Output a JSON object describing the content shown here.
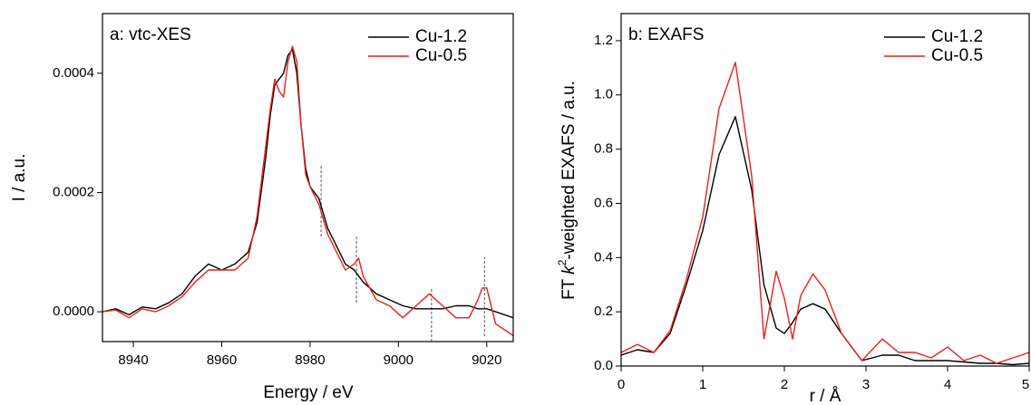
{
  "chart_data": [
    {
      "type": "line",
      "title": "a: vtc-XES",
      "xlabel": "Energy / eV",
      "ylabel": "I / a.u.",
      "x": [
        8933,
        8936,
        8939,
        8942,
        8945,
        8948,
        8951,
        8954,
        8957,
        8960,
        8963,
        8966,
        8968,
        8970,
        8971,
        8972,
        8973,
        8974,
        8975,
        8976,
        8977,
        8978,
        8979,
        8980,
        8982,
        8984,
        8986,
        8988,
        8990,
        8991,
        8992,
        8995,
        8998,
        9001,
        9004,
        9007,
        9010,
        9013,
        9016,
        9018,
        9019,
        9020,
        9022,
        9026
      ],
      "series": [
        {
          "name": "Cu-1.2",
          "color": "#000000",
          "values": [
            0,
            5e-06,
            -5e-06,
            8e-06,
            5e-06,
            1.5e-05,
            3e-05,
            6e-05,
            8e-05,
            7e-05,
            8e-05,
            0.0001,
            0.00015,
            0.00026,
            0.00033,
            0.00038,
            0.00039,
            0.0004,
            0.00043,
            0.00044,
            0.0004,
            0.00031,
            0.00024,
            0.00021,
            0.00019,
            0.00014,
            0.00011,
            8e-05,
            7e-05,
            6e-05,
            5e-05,
            3e-05,
            2e-05,
            1e-05,
            5e-06,
            5e-06,
            5e-06,
            1e-05,
            1e-05,
            5e-06,
            5e-06,
            5e-06,
            0,
            -1e-05
          ]
        },
        {
          "name": "Cu-0.5",
          "color": "#e8211a",
          "values": [
            0,
            3e-06,
            -1e-05,
            5e-06,
            0,
            1e-05,
            2.5e-05,
            5e-05,
            7e-05,
            7e-05,
            7e-05,
            9e-05,
            0.00016,
            0.00028,
            0.00034,
            0.00039,
            0.00037,
            0.00036,
            0.00042,
            0.000445,
            0.00042,
            0.00031,
            0.00023,
            0.00021,
            0.00018,
            0.00013,
            0.0001,
            7e-05,
            8e-05,
            9e-05,
            6e-05,
            2e-05,
            1e-05,
            -1e-05,
            1e-05,
            3e-05,
            1e-05,
            -1e-05,
            -1e-05,
            2e-05,
            4e-05,
            4e-05,
            -2e-05,
            -4e-05
          ]
        }
      ],
      "reference_lines": [
        {
          "x": 8982.5,
          "y": [
            0.000126,
            0.000248
          ]
        },
        {
          "x": 8990.5,
          "y": [
            1.52e-05,
            0.000129
          ]
        },
        {
          "x": 9007.5,
          "y": [
            -5e-05,
            4.1e-05
          ]
        },
        {
          "x": 9019.5,
          "y": [
            -4.1e-05,
            9.13e-05
          ]
        }
      ],
      "xlim": [
        8933,
        9026
      ],
      "xticks": [
        8940,
        8960,
        8980,
        9000,
        9020
      ],
      "ylim": [
        -5e-05,
        0.0005
      ],
      "yticks": [
        {
          "value": 0,
          "label": "0.0000"
        },
        0.0002,
        0.0004
      ],
      "legend": "upper right"
    },
    {
      "type": "line",
      "title": "b: EXAFS",
      "xlabel": "r / Å",
      "ylabel": {
        "prefix": "FT ",
        "variable": "k",
        "exponent": "2",
        "suffix": "-weighted EXAFS / a.u."
      },
      "x": [
        0,
        0.2,
        0.4,
        0.6,
        0.8,
        1.0,
        1.2,
        1.4,
        1.6,
        1.75,
        1.9,
        2.0,
        2.1,
        2.2,
        2.35,
        2.5,
        2.7,
        2.95,
        3.2,
        3.4,
        3.6,
        3.8,
        4.0,
        4.2,
        4.4,
        4.6,
        4.8,
        5.0
      ],
      "series": [
        {
          "name": "Cu-1.2",
          "color": "#000000",
          "values": [
            0.04,
            0.06,
            0.05,
            0.12,
            0.3,
            0.5,
            0.78,
            0.92,
            0.65,
            0.3,
            0.14,
            0.12,
            0.16,
            0.21,
            0.23,
            0.21,
            0.12,
            0.02,
            0.04,
            0.04,
            0.02,
            0.02,
            0.02,
            0.015,
            0.01,
            0.01,
            0.005,
            0.01
          ]
        },
        {
          "name": "Cu-0.5",
          "color": "#e8211a",
          "values": [
            0.05,
            0.08,
            0.05,
            0.13,
            0.32,
            0.55,
            0.95,
            1.12,
            0.7,
            0.1,
            0.35,
            0.25,
            0.1,
            0.26,
            0.34,
            0.28,
            0.12,
            0.02,
            0.1,
            0.05,
            0.05,
            0.03,
            0.07,
            0.02,
            0.04,
            0.01,
            0.03,
            0.05
          ]
        }
      ],
      "xlim": [
        0,
        5
      ],
      "xticks": [
        0,
        1,
        2,
        3,
        4,
        5
      ],
      "ylim": [
        0,
        1.3
      ],
      "yticks": [
        {
          "value": 0,
          "label": "0.0"
        },
        0.2,
        0.4,
        0.6,
        0.8,
        {
          "value": 1,
          "label": "1.0"
        },
        1.2
      ],
      "legend": "upper right"
    }
  ]
}
